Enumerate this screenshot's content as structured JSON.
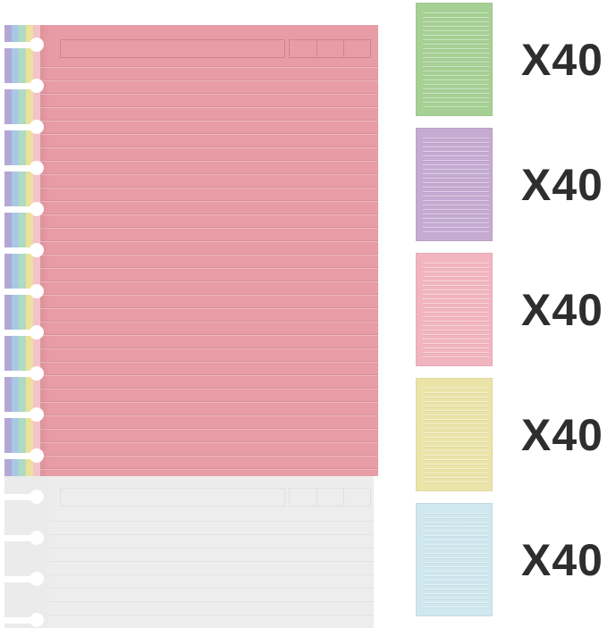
{
  "notebook": {
    "top_page_color_name": "pink",
    "top_page_color": "#e89da6",
    "ruled_line_color": "#d98f99",
    "header_box_color": "#cf838e",
    "bottom_page_color_name": "white",
    "bottom_page_color": "#ededed",
    "bottom_line_color": "#e2e2e2",
    "bottom_box_color": "#e0e0e0",
    "ring_color": "#ffffff",
    "ring_count": 15,
    "edge_stripes": [
      {
        "name": "lavender",
        "color": "#b3a7d6"
      },
      {
        "name": "blue",
        "color": "#a9c8e5"
      },
      {
        "name": "green",
        "color": "#afdcc0"
      },
      {
        "name": "yellow",
        "color": "#ebe19c"
      },
      {
        "name": "pink",
        "color": "#f3c3ca"
      }
    ]
  },
  "swatches": [
    {
      "name": "green",
      "color": "#a6d094",
      "count_label": "X40"
    },
    {
      "name": "purple",
      "color": "#c5aad2",
      "count_label": "X40"
    },
    {
      "name": "pink",
      "color": "#f2b4bf",
      "count_label": "X40"
    },
    {
      "name": "yellow",
      "color": "#ebe4a8",
      "count_label": "X40"
    },
    {
      "name": "blue",
      "color": "#cfe7ee",
      "count_label": "X40"
    }
  ],
  "text_color": "#2e2e2e"
}
